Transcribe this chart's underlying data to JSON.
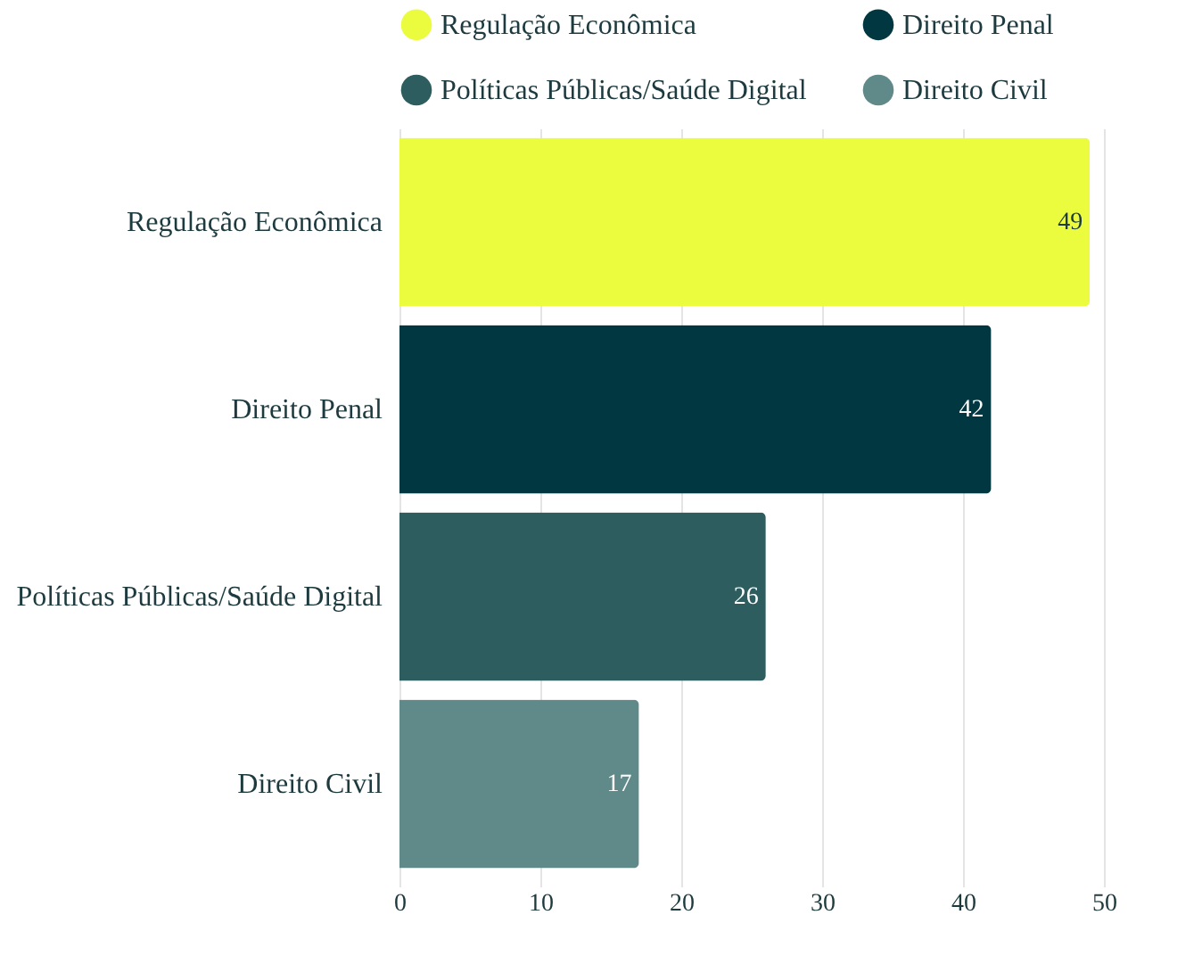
{
  "chart_data": {
    "type": "bar",
    "orientation": "horizontal",
    "categories": [
      "Regulação Econômica",
      "Direito Penal",
      "Políticas Públicas/Saúde Digital",
      "Direito Civil"
    ],
    "series": [
      {
        "name": "Regulação Econômica",
        "color": "#ebfc3f",
        "values": [
          49,
          null,
          null,
          null
        ]
      },
      {
        "name": "Direito Penal",
        "color": "#003740",
        "values": [
          null,
          42,
          null,
          null
        ]
      },
      {
        "name": "Políticas Públicas/Saúde Digital",
        "color": "#2d5d5f",
        "values": [
          null,
          null,
          26,
          null
        ]
      },
      {
        "name": "Direito Civil",
        "color": "#608a8a",
        "values": [
          null,
          null,
          null,
          17
        ]
      }
    ],
    "xlim": [
      0,
      50
    ],
    "xticks": [
      0,
      10,
      20,
      30,
      40,
      50
    ],
    "grid": "x",
    "legend": "top",
    "data_labels": true
  }
}
